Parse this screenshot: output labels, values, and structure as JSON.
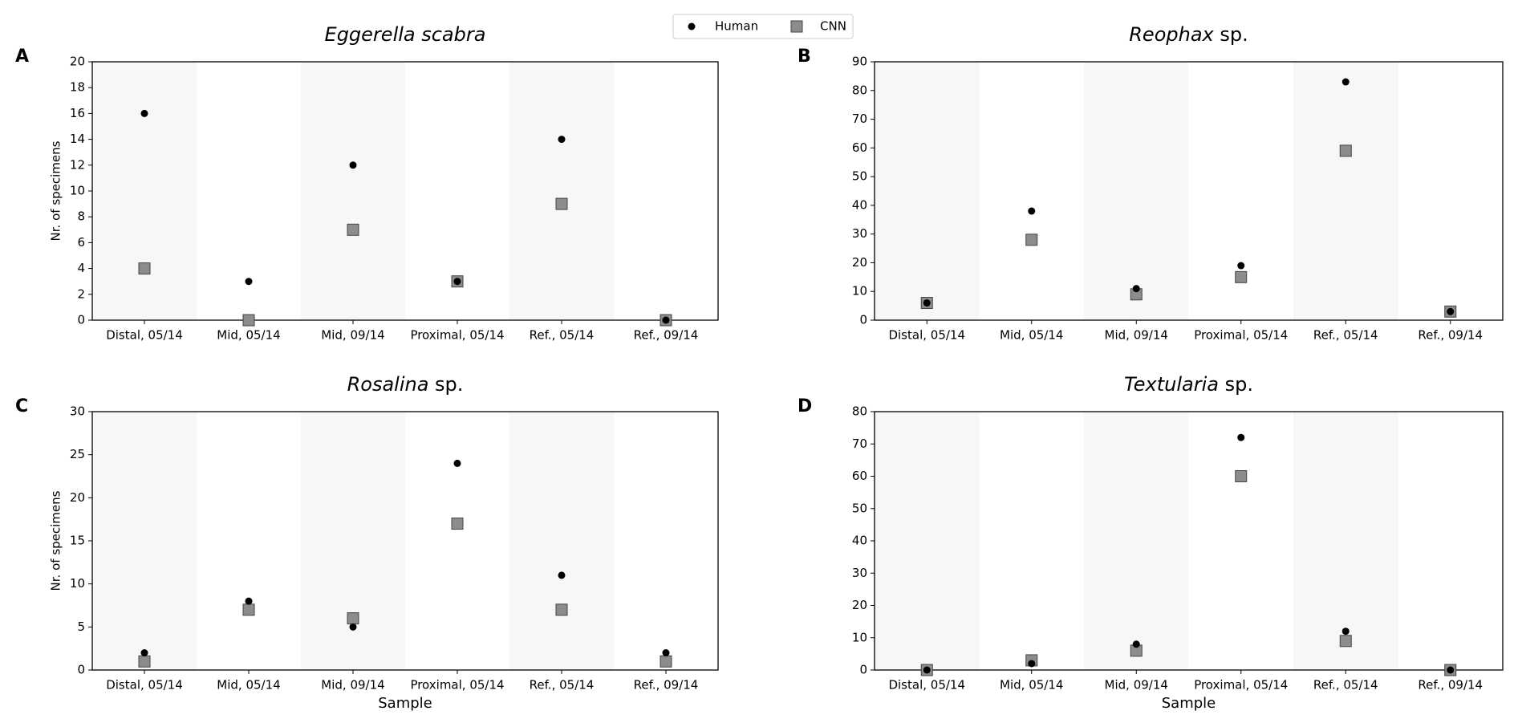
{
  "chart_data": [
    {
      "type": "scatter",
      "panel_label": "A",
      "title": "Eggerella scabra",
      "ylabel": "Nr. of specimens",
      "categories": [
        "Distal, 05/14",
        "Mid, 05/14",
        "Mid, 09/14",
        "Proximal, 05/14",
        "Ref., 05/14",
        "Ref., 09/14"
      ],
      "series": [
        {
          "name": "Human",
          "color": "#000000",
          "marker": "circle",
          "values": [
            16,
            3,
            12,
            3,
            14,
            0
          ]
        },
        {
          "name": "CNN",
          "color": "#8c8c8c",
          "marker": "square",
          "values": [
            4,
            0,
            7,
            3,
            9,
            0
          ]
        }
      ],
      "ylim": [
        0,
        20
      ],
      "yticks": [
        0,
        2,
        4,
        6,
        8,
        10,
        12,
        14,
        16,
        18,
        20
      ]
    },
    {
      "type": "scatter",
      "panel_label": "B",
      "title": "Reophax sp.",
      "categories": [
        "Distal, 05/14",
        "Mid, 05/14",
        "Mid, 09/14",
        "Proximal, 05/14",
        "Ref., 05/14",
        "Ref., 09/14"
      ],
      "series": [
        {
          "name": "Human",
          "color": "#000000",
          "marker": "circle",
          "values": [
            6,
            38,
            11,
            19,
            83,
            3
          ]
        },
        {
          "name": "CNN",
          "color": "#8c8c8c",
          "marker": "square",
          "values": [
            6,
            28,
            9,
            15,
            59,
            3
          ]
        }
      ],
      "ylim": [
        0,
        90
      ],
      "yticks": [
        0,
        10,
        20,
        30,
        40,
        50,
        60,
        70,
        80,
        90
      ]
    },
    {
      "type": "scatter",
      "panel_label": "C",
      "title": "Rosalina sp.",
      "ylabel": "Nr. of specimens",
      "xlabel": "Sample",
      "categories": [
        "Distal, 05/14",
        "Mid, 05/14",
        "Mid, 09/14",
        "Proximal, 05/14",
        "Ref., 05/14",
        "Ref., 09/14"
      ],
      "series": [
        {
          "name": "Human",
          "color": "#000000",
          "marker": "circle",
          "values": [
            2,
            8,
            5,
            24,
            11,
            2
          ]
        },
        {
          "name": "CNN",
          "color": "#8c8c8c",
          "marker": "square",
          "values": [
            1,
            7,
            6,
            17,
            7,
            1
          ]
        }
      ],
      "ylim": [
        0,
        30
      ],
      "yticks": [
        0,
        5,
        10,
        15,
        20,
        25,
        30
      ]
    },
    {
      "type": "scatter",
      "panel_label": "D",
      "title": "Textularia sp.",
      "xlabel": "Sample",
      "categories": [
        "Distal, 05/14",
        "Mid, 05/14",
        "Mid, 09/14",
        "Proximal, 05/14",
        "Ref., 05/14",
        "Ref., 09/14"
      ],
      "series": [
        {
          "name": "Human",
          "color": "#000000",
          "marker": "circle",
          "values": [
            0,
            2,
            8,
            72,
            12,
            0
          ]
        },
        {
          "name": "CNN",
          "color": "#8c8c8c",
          "marker": "square",
          "values": [
            0,
            3,
            6,
            60,
            9,
            0
          ]
        }
      ],
      "ylim": [
        0,
        80
      ],
      "yticks": [
        0,
        10,
        20,
        30,
        40,
        50,
        60,
        70,
        80
      ]
    }
  ]
}
